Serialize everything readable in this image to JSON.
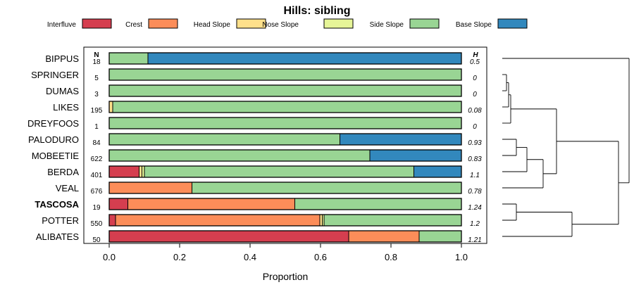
{
  "chart_data": {
    "type": "bar",
    "orientation": "horizontal-stacked",
    "title": "Hills: sibling",
    "xlabel": "Proportion",
    "xlim": [
      0,
      1
    ],
    "xticks": [
      "0.0",
      "0.2",
      "0.4",
      "0.6",
      "0.8",
      "1.0"
    ],
    "n_header": "N",
    "h_header": "H",
    "legend": [
      {
        "name": "Interfluve",
        "color": "#d53e4f"
      },
      {
        "name": "Crest",
        "color": "#fc8d59"
      },
      {
        "name": "Head Slope",
        "color": "#fee08b"
      },
      {
        "name": "Nose Slope",
        "color": "#e6f598"
      },
      {
        "name": "Side Slope",
        "color": "#99d594"
      },
      {
        "name": "Base Slope",
        "color": "#3288bd"
      }
    ],
    "rows": [
      {
        "name": "BIPPUS",
        "n": "18",
        "h": "0.5",
        "bold": false,
        "values": [
          0,
          0,
          0,
          0,
          0.11,
          0.89
        ]
      },
      {
        "name": "SPRINGER",
        "n": "5",
        "h": "0",
        "bold": false,
        "values": [
          0,
          0,
          0,
          0,
          1.0,
          0
        ]
      },
      {
        "name": "DUMAS",
        "n": "3",
        "h": "0",
        "bold": false,
        "values": [
          0,
          0,
          0,
          0,
          1.0,
          0
        ]
      },
      {
        "name": "LIKES",
        "n": "195",
        "h": "0.08",
        "bold": false,
        "values": [
          0,
          0,
          0.01,
          0,
          0.99,
          0
        ]
      },
      {
        "name": "DREYFOOS",
        "n": "1",
        "h": "0",
        "bold": false,
        "values": [
          0,
          0,
          0,
          0,
          1.0,
          0
        ]
      },
      {
        "name": "PALODURO",
        "n": "84",
        "h": "0.93",
        "bold": false,
        "values": [
          0,
          0,
          0,
          0,
          0.655,
          0.345
        ]
      },
      {
        "name": "MOBEETIE",
        "n": "622",
        "h": "0.83",
        "bold": false,
        "values": [
          0,
          0,
          0,
          0,
          0.74,
          0.26
        ]
      },
      {
        "name": "BERDA",
        "n": "401",
        "h": "1.1",
        "bold": false,
        "values": [
          0.085,
          0,
          0.008,
          0.007,
          0.765,
          0.135
        ]
      },
      {
        "name": "VEAL",
        "n": "676",
        "h": "0.78",
        "bold": false,
        "values": [
          0,
          0.235,
          0,
          0,
          0.765,
          0
        ]
      },
      {
        "name": "TASCOSA",
        "n": "19",
        "h": "1.24",
        "bold": true,
        "values": [
          0.053,
          0.474,
          0,
          0,
          0.473,
          0
        ]
      },
      {
        "name": "POTTER",
        "n": "550",
        "h": "1.2",
        "bold": false,
        "values": [
          0.018,
          0.58,
          0.007,
          0.005,
          0.39,
          0
        ]
      },
      {
        "name": "ALIBATES",
        "n": "50",
        "h": "1.21",
        "bold": false,
        "values": [
          0.68,
          0.2,
          0,
          0,
          0.12,
          0
        ]
      }
    ]
  }
}
